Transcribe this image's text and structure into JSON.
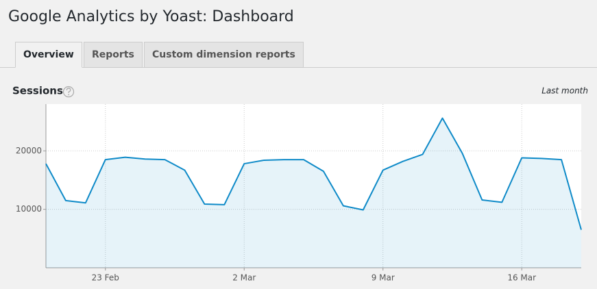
{
  "header": {
    "title": "Google Analytics by Yoast: Dashboard"
  },
  "tabs": [
    "Overview",
    "Reports",
    "Custom dimension reports"
  ],
  "active_tab": 0,
  "chart_data": {
    "type": "area",
    "title": "Sessions",
    "subtitle": "Last month",
    "categories": [
      null,
      null,
      null,
      "23 Feb",
      null,
      null,
      null,
      null,
      null,
      null,
      "2 Mar",
      null,
      null,
      null,
      null,
      null,
      null,
      "9 Mar",
      null,
      null,
      null,
      null,
      null,
      null,
      "16 Mar",
      null,
      null,
      null
    ],
    "series": [
      {
        "name": "Sessions",
        "color": "#0e8ac8",
        "values": [
          17800,
          11500,
          11100,
          18500,
          18900,
          18600,
          18500,
          16700,
          10900,
          10800,
          17800,
          18400,
          18500,
          18500,
          16500,
          10600,
          9900,
          16700,
          18200,
          19400,
          25600,
          19600,
          11600,
          11200,
          18800,
          18700,
          18500,
          6500
        ]
      }
    ],
    "ylim": [
      0,
      28000
    ],
    "yticks": [
      10000,
      20000
    ],
    "grid": true
  }
}
